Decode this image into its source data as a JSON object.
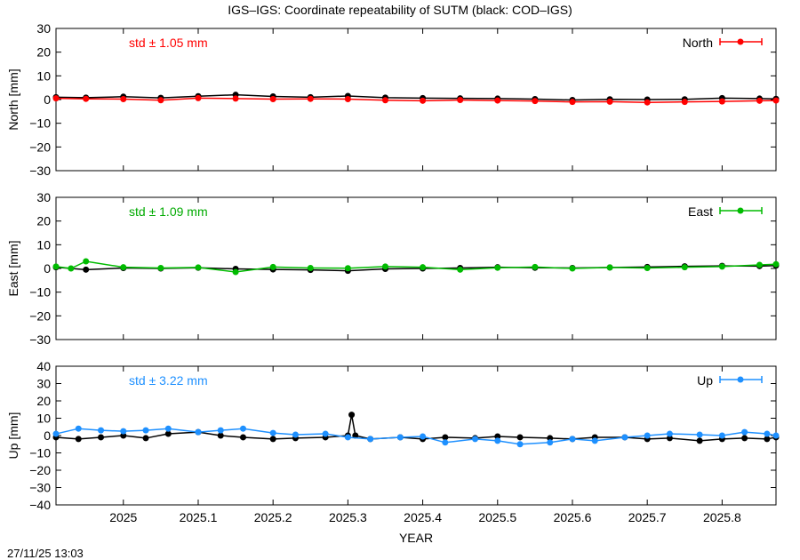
{
  "title": "IGS–IGS: Coordinate repeatability of SUTM (black: COD–IGS)",
  "timestamp": "27/11/25 13:03",
  "chart_data": {
    "type": "scatter",
    "xlabel": "YEAR",
    "xlim": [
      2024.91,
      2025.872
    ],
    "xticks": [
      "2025",
      "2025.1",
      "2025.2",
      "2025.3",
      "2025.4",
      "2025.5",
      "2025.6",
      "2025.7",
      "2025.8"
    ],
    "xtick_values": [
      2025.0,
      2025.1,
      2025.2,
      2025.3,
      2025.4,
      2025.5,
      2025.6,
      2025.7,
      2025.8
    ],
    "panels": [
      {
        "id": "north",
        "ylabel": "North [mm]",
        "ylim": [
          -30,
          30
        ],
        "yticks": [
          30,
          20,
          10,
          0,
          -10,
          -20,
          -30
        ],
        "std_label": "std ± 1.05 mm",
        "color": "#ff0000",
        "series": [
          {
            "name": "North",
            "color": "#ff0000",
            "x": [
              2024.91,
              2024.95,
              2025.0,
              2025.05,
              2025.1,
              2025.15,
              2025.2,
              2025.25,
              2025.3,
              2025.35,
              2025.4,
              2025.45,
              2025.5,
              2025.55,
              2025.6,
              2025.65,
              2025.7,
              2025.75,
              2025.8,
              2025.85,
              2025.872
            ],
            "y": [
              0.5,
              0.3,
              0.2,
              -0.3,
              0.6,
              0.4,
              0.2,
              0.3,
              0.2,
              -0.3,
              -0.5,
              -0.2,
              -0.4,
              -0.6,
              -1.0,
              -0.9,
              -1.2,
              -1.0,
              -0.8,
              -0.5,
              -0.4
            ]
          },
          {
            "name": "COD–IGS",
            "color": "#000000",
            "x": [
              2024.91,
              2024.95,
              2025.0,
              2025.05,
              2025.1,
              2025.15,
              2025.2,
              2025.25,
              2025.3,
              2025.35,
              2025.4,
              2025.45,
              2025.5,
              2025.55,
              2025.6,
              2025.65,
              2025.7,
              2025.75,
              2025.8,
              2025.85,
              2025.872
            ],
            "y": [
              1.0,
              0.8,
              1.2,
              0.7,
              1.4,
              2.0,
              1.3,
              1.0,
              1.5,
              0.8,
              0.6,
              0.5,
              0.4,
              0.2,
              -0.2,
              0.1,
              0.0,
              0.1,
              0.6,
              0.4,
              0.3
            ]
          }
        ]
      },
      {
        "id": "east",
        "ylabel": "East [mm]",
        "ylim": [
          -30,
          30
        ],
        "yticks": [
          30,
          20,
          10,
          0,
          -10,
          -20,
          -30
        ],
        "std_label": "std ± 1.09 mm",
        "color": "#00aa00",
        "series": [
          {
            "name": "East",
            "color": "#00bb00",
            "x": [
              2024.91,
              2024.93,
              2024.95,
              2025.0,
              2025.05,
              2025.1,
              2025.15,
              2025.2,
              2025.25,
              2025.3,
              2025.35,
              2025.4,
              2025.45,
              2025.5,
              2025.55,
              2025.6,
              2025.65,
              2025.7,
              2025.75,
              2025.8,
              2025.85,
              2025.872
            ],
            "y": [
              0.8,
              0.0,
              3.0,
              0.5,
              0.2,
              0.4,
              -1.5,
              0.6,
              0.2,
              0.1,
              0.8,
              0.5,
              -0.5,
              0.3,
              0.6,
              0.0,
              0.4,
              0.2,
              0.5,
              0.8,
              1.5,
              1.8
            ]
          },
          {
            "name": "COD–IGS",
            "color": "#000000",
            "x": [
              2024.91,
              2024.95,
              2025.0,
              2025.05,
              2025.1,
              2025.15,
              2025.2,
              2025.25,
              2025.3,
              2025.35,
              2025.4,
              2025.45,
              2025.5,
              2025.55,
              2025.6,
              2025.65,
              2025.7,
              2025.75,
              2025.8,
              2025.85,
              2025.872
            ],
            "y": [
              0.5,
              -0.5,
              0.2,
              0.0,
              0.3,
              -0.2,
              -0.4,
              -0.6,
              -1.0,
              -0.2,
              0.0,
              0.2,
              0.5,
              0.3,
              0.2,
              0.4,
              0.6,
              0.9,
              1.1,
              1.0,
              1.2
            ]
          }
        ]
      },
      {
        "id": "up",
        "ylabel": "Up [mm]",
        "ylim": [
          -40,
          40
        ],
        "yticks": [
          40,
          30,
          20,
          10,
          0,
          -10,
          -20,
          -30,
          -40
        ],
        "std_label": "std ± 3.22 mm",
        "color": "#1e90ff",
        "series": [
          {
            "name": "Up",
            "color": "#1e90ff",
            "x": [
              2024.91,
              2024.94,
              2024.97,
              2025.0,
              2025.03,
              2025.06,
              2025.1,
              2025.13,
              2025.16,
              2025.2,
              2025.23,
              2025.27,
              2025.3,
              2025.33,
              2025.37,
              2025.4,
              2025.43,
              2025.47,
              2025.5,
              2025.53,
              2025.57,
              2025.6,
              2025.63,
              2025.67,
              2025.7,
              2025.73,
              2025.77,
              2025.8,
              2025.83,
              2025.86,
              2025.872
            ],
            "y": [
              1.0,
              4.0,
              3.0,
              2.5,
              3.0,
              4.0,
              2.0,
              3.0,
              4.0,
              1.5,
              0.5,
              1.0,
              -1.0,
              -2.0,
              -1.0,
              -0.5,
              -4.0,
              -2.0,
              -3.0,
              -5.0,
              -4.0,
              -2.0,
              -3.0,
              -1.0,
              0.0,
              1.0,
              0.5,
              0.0,
              2.0,
              1.0,
              0.0
            ]
          },
          {
            "name": "COD–IGS",
            "color": "#000000",
            "x": [
              2024.91,
              2024.94,
              2024.97,
              2025.0,
              2025.03,
              2025.06,
              2025.1,
              2025.13,
              2025.16,
              2025.2,
              2025.23,
              2025.27,
              2025.3,
              2025.305,
              2025.31,
              2025.33,
              2025.37,
              2025.4,
              2025.43,
              2025.47,
              2025.5,
              2025.53,
              2025.57,
              2025.6,
              2025.63,
              2025.67,
              2025.7,
              2025.73,
              2025.77,
              2025.8,
              2025.83,
              2025.86,
              2025.872
            ],
            "y": [
              -1.0,
              -2.0,
              -1.0,
              0.0,
              -1.5,
              1.0,
              2.0,
              0.0,
              -1.0,
              -2.0,
              -1.5,
              -1.0,
              0.0,
              12.0,
              0.0,
              -2.0,
              -1.0,
              -2.0,
              -1.0,
              -1.5,
              -0.5,
              -1.0,
              -1.5,
              -2.0,
              -1.0,
              -1.0,
              -2.0,
              -1.5,
              -3.0,
              -2.0,
              -1.5,
              -2.0,
              -1.0
            ]
          }
        ]
      }
    ],
    "legend_placement": "top-right",
    "grid": false
  }
}
